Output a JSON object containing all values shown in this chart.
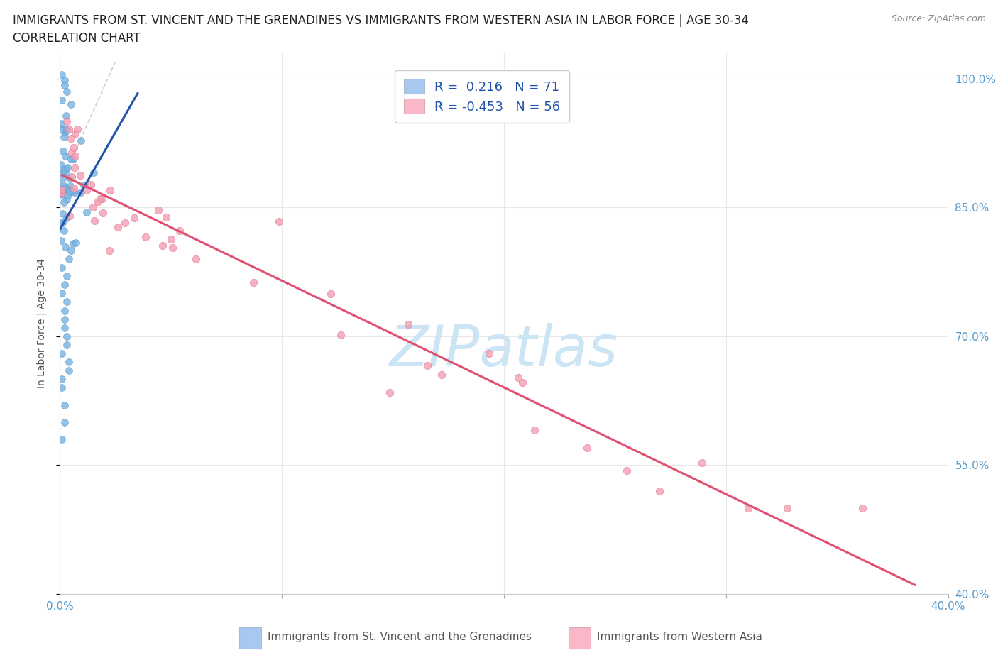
{
  "title_line1": "IMMIGRANTS FROM ST. VINCENT AND THE GRENADINES VS IMMIGRANTS FROM WESTERN ASIA IN LABOR FORCE | AGE 30-34",
  "title_line2": "CORRELATION CHART",
  "source": "Source: ZipAtlas.com",
  "ylabel": "In Labor Force | Age 30-34",
  "xlim": [
    0.0,
    0.4
  ],
  "ylim": [
    0.4,
    1.03
  ],
  "r_blue": 0.216,
  "n_blue": 71,
  "r_pink": -0.453,
  "n_pink": 56,
  "blue_color": "#7ab3e0",
  "pink_color": "#f4a0b0",
  "blue_line_color": "#2255aa",
  "pink_line_color": "#e05070",
  "legend_blue_face": "#a8c8f0",
  "legend_pink_face": "#f8b8c8",
  "watermark": "ZIPatlas",
  "watermark_color": "#cce5f5",
  "background_color": "#ffffff",
  "grid_color": "#e8e8e8",
  "label1": "Immigrants from St. Vincent and the Grenadines",
  "label2": "Immigrants from Western Asia"
}
